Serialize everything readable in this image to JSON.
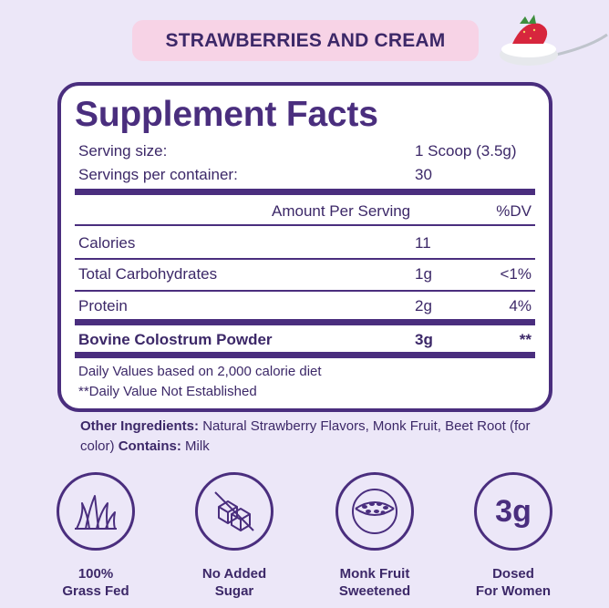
{
  "flavor": "STRAWBERRIES AND CREAM",
  "facts": {
    "title": "Supplement Facts",
    "serving_size_label": "Serving size:",
    "serving_size_value": "1 Scoop (3.5g)",
    "servings_label": "Servings per container:",
    "servings_value": "30",
    "amount_header": "Amount Per Serving",
    "dv_header": "%DV",
    "rows": [
      {
        "label": "Calories",
        "amount": "11",
        "dv": ""
      },
      {
        "label": "Total Carbohydrates",
        "amount": "1g",
        "dv": "<1%"
      },
      {
        "label": "Protein",
        "amount": "2g",
        "dv": "4%"
      },
      {
        "label": "Bovine Colostrum Powder",
        "amount": "3g",
        "dv": "**"
      }
    ],
    "footnote_1": "Daily Values based on 2,000 calorie diet",
    "footnote_2": "**Daily Value Not Established"
  },
  "ingredients": {
    "other_label": "Other Ingredients:",
    "other_text": "Natural Strawberry Flavors, Monk Fruit, Beet Root (for color)",
    "contains_label": "Contains:",
    "contains_text": "Milk"
  },
  "badges": [
    {
      "icon": "grass-icon",
      "line1": "100%",
      "line2": "Grass Fed"
    },
    {
      "icon": "sugar-cube-icon",
      "line1": "No Added",
      "line2": "Sugar"
    },
    {
      "icon": "monk-fruit-icon",
      "line1": "Monk Fruit",
      "line2": "Sweetened"
    },
    {
      "icon": "dose-icon",
      "dose": "3g",
      "line1": "Dosed",
      "line2": "For Women"
    }
  ],
  "colors": {
    "background": "#ECE7F8",
    "accent": "#4A2E7E",
    "pill": "#F7D3E6"
  }
}
